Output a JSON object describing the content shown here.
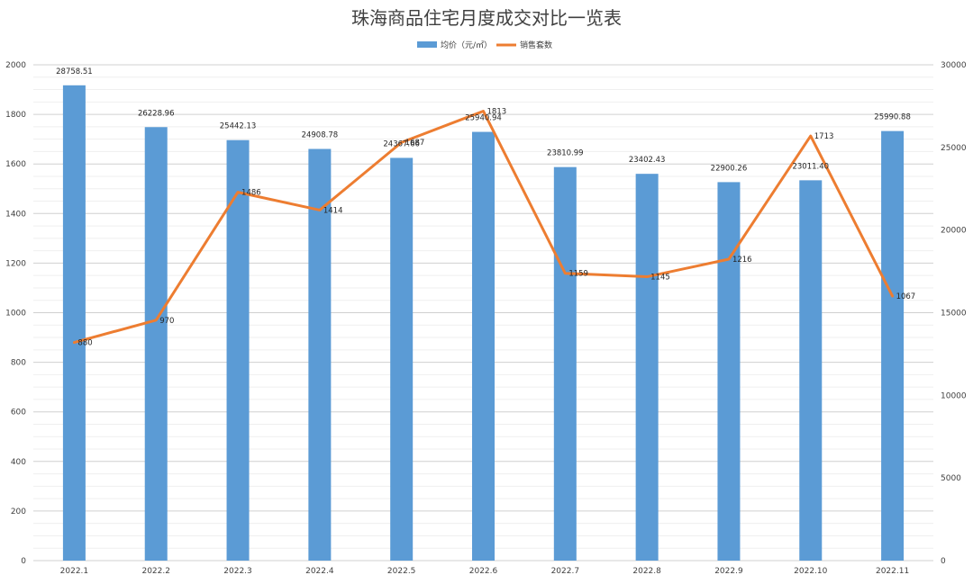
{
  "chart_data": {
    "type": "bar+line",
    "title": "珠海商品住宅月度成交对比一览表",
    "categories": [
      "2022.1",
      "2022.2",
      "2022.3",
      "2022.4",
      "2022.5",
      "2022.6",
      "2022.7",
      "2022.8",
      "2022.9",
      "2022.10",
      "2022.11"
    ],
    "series": [
      {
        "name": "均价（元/㎡）",
        "kind": "bar",
        "axis": "right",
        "color": "#5B9BD5",
        "values": [
          28758.51,
          26228.96,
          25442.13,
          24908.78,
          24367.66,
          25940.94,
          23810.99,
          23402.43,
          22900.26,
          23011.4,
          25990.88
        ],
        "labels": [
          "28758.51",
          "26228.96",
          "25442.13",
          "24908.78",
          "24367.66",
          "25940.94",
          "23810.99",
          "23402.43",
          "22900.26",
          "23011.40",
          "25990.88"
        ]
      },
      {
        "name": "销售套数",
        "kind": "line",
        "axis": "left",
        "color": "#ED7D31",
        "values": [
          880,
          970,
          1486,
          1414,
          1687,
          1813,
          1159,
          1145,
          1216,
          1713,
          1067
        ],
        "labels": [
          "880",
          "970",
          "1486",
          "1414",
          "1687",
          "1813",
          "1159",
          "1145",
          "1216",
          "1713",
          "1067"
        ]
      }
    ],
    "y_left": {
      "min": 0,
      "max": 2000,
      "ticks": [
        "0",
        "200",
        "400",
        "600",
        "800",
        "1000",
        "1200",
        "1400",
        "1600",
        "1800",
        "2000"
      ]
    },
    "y_right": {
      "min": 0,
      "max": 30000,
      "ticks": [
        "0",
        "5000",
        "10000",
        "15000",
        "20000",
        "25000",
        "30000"
      ]
    },
    "grid": true,
    "legend_position": "top"
  }
}
